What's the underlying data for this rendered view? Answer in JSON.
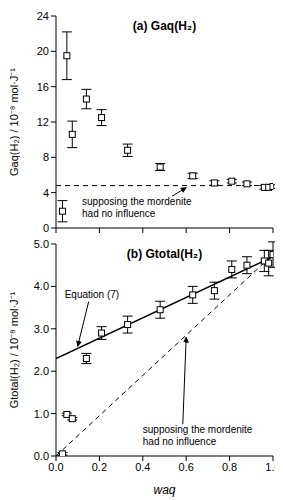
{
  "chart_data": [
    {
      "type": "scatter",
      "title": "(a) Gaq(H₂)",
      "y_label": "Gaq(H₂) / 10⁻⁸ mol·J⁻¹",
      "x": [
        0.03,
        0.05,
        0.075,
        0.14,
        0.21,
        0.33,
        0.48,
        0.63,
        0.73,
        0.81,
        0.88,
        0.96,
        0.98,
        1.0
      ],
      "values": [
        1.9,
        19.5,
        10.6,
        14.6,
        12.5,
        8.8,
        6.9,
        5.9,
        5.1,
        5.3,
        5.0,
        4.6,
        4.6,
        4.7
      ],
      "errors": [
        1.2,
        2.7,
        1.5,
        1.1,
        0.9,
        0.7,
        0.4,
        0.3,
        0.25,
        0.2,
        0.2,
        0.2,
        0.2,
        0.2
      ],
      "xlim": [
        0,
        1
      ],
      "ylim": [
        0,
        24
      ],
      "xticks": [
        0,
        0.2,
        0.4,
        0.6,
        0.8,
        1
      ],
      "yticks": [
        0,
        4,
        8,
        12,
        16,
        20,
        24
      ],
      "tick_labels": "y",
      "grid": false,
      "marker": "square",
      "color": "#000000",
      "lines": [
        {
          "label": "supposing the mordenite had no influence",
          "x": [
            0,
            1
          ],
          "values": [
            4.8,
            4.8
          ],
          "line_style": "dashed"
        }
      ]
    },
    {
      "type": "scatter",
      "title": "(b) Gtotal(H₂)",
      "y_label": "Gtotal(H₂) / 10⁻⁸ mol·J⁻¹",
      "x_label": "waq",
      "x": [
        0.03,
        0.05,
        0.075,
        0.14,
        0.21,
        0.33,
        0.48,
        0.63,
        0.73,
        0.81,
        0.88,
        0.96,
        0.98,
        1.0
      ],
      "values": [
        0.05,
        0.98,
        0.88,
        2.3,
        2.9,
        3.1,
        3.45,
        3.8,
        3.9,
        4.4,
        4.5,
        4.6,
        4.55,
        4.75
      ],
      "errors": [
        0.03,
        0.03,
        0.03,
        0.12,
        0.15,
        0.2,
        0.2,
        0.2,
        0.2,
        0.2,
        0.2,
        0.25,
        0.3,
        0.3
      ],
      "xlim": [
        0,
        1
      ],
      "ylim": [
        0,
        5
      ],
      "xticks": [
        {
          "value": 0,
          "label": "0.0"
        },
        {
          "value": 0.2,
          "label": "0.2"
        },
        {
          "value": 0.4,
          "label": "0.4"
        },
        {
          "value": 0.6,
          "label": "0.6"
        },
        {
          "value": 0.8,
          "label": "0.8"
        },
        {
          "value": 1,
          "label": "1.0"
        }
      ],
      "yticks": [
        {
          "value": 0,
          "label": "0.0"
        },
        {
          "value": 1,
          "label": "1.0"
        },
        {
          "value": 2,
          "label": "2.0"
        },
        {
          "value": 3,
          "label": "3.0"
        },
        {
          "value": 4,
          "label": "4.0"
        },
        {
          "value": 5,
          "label": "5.0"
        }
      ],
      "grid": false,
      "marker": "square",
      "color": "#000000",
      "lines": [
        {
          "label": "Equation (7)",
          "x": [
            0,
            1
          ],
          "values": [
            2.3,
            4.7
          ],
          "line_style": "solid"
        },
        {
          "label": "supposing the mordenite had no influence",
          "x": [
            0,
            1
          ],
          "values": [
            0,
            4.75
          ],
          "line_style": "dashed"
        }
      ]
    }
  ]
}
